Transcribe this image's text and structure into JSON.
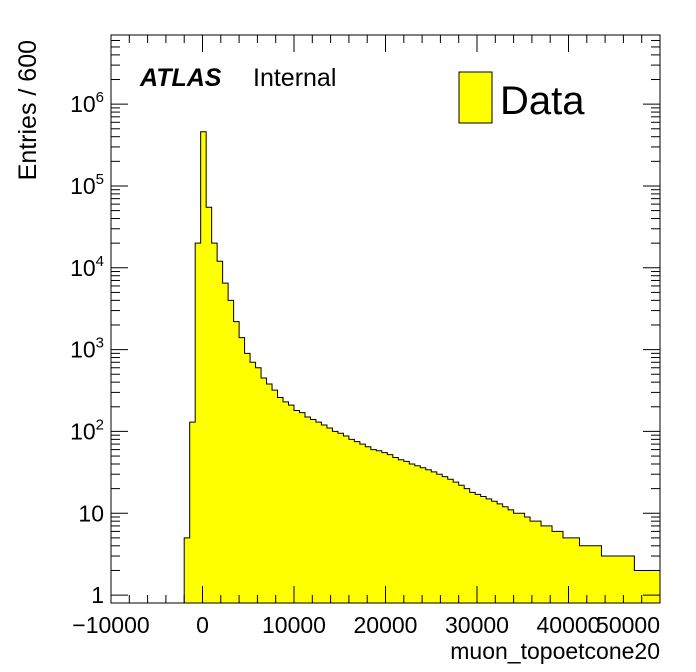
{
  "chart_data": {
    "type": "bar",
    "style": "filled-step-histogram",
    "xlabel": "muon_topoetcone20",
    "ylabel": "Entries / 600",
    "atlas_label": "ATLAS",
    "atlas_status": "Internal",
    "legend": {
      "label": "Data",
      "placement": "top-right"
    },
    "colors": {
      "fill": "#ffff00",
      "line": "#000000"
    },
    "xlim": [
      -10000,
      50000
    ],
    "ylog": true,
    "ylim": [
      0.8,
      7000000
    ],
    "bin_width": 600,
    "x_ticks": [
      {
        "v": -10000,
        "label": "−10000"
      },
      {
        "v": 0,
        "label": "0"
      },
      {
        "v": 10000,
        "label": "10000"
      },
      {
        "v": 20000,
        "label": "20000"
      },
      {
        "v": 30000,
        "label": "30000"
      },
      {
        "v": 40000,
        "label": "40000"
      },
      {
        "v": 50000,
        "label": "50000"
      }
    ],
    "y_ticks": [
      {
        "v": 1,
        "base": "1",
        "exp": ""
      },
      {
        "v": 10,
        "base": "10",
        "exp": ""
      },
      {
        "v": 100,
        "base": "10",
        "exp": "2"
      },
      {
        "v": 1000,
        "base": "10",
        "exp": "3"
      },
      {
        "v": 10000,
        "base": "10",
        "exp": "4"
      },
      {
        "v": 100000,
        "base": "10",
        "exp": "5"
      },
      {
        "v": 1000000,
        "base": "10",
        "exp": "6"
      }
    ],
    "bin_start": -2000,
    "values": [
      5,
      130,
      20000,
      460000,
      55000,
      20000,
      12000,
      6500,
      4000,
      2200,
      1400,
      900,
      700,
      600,
      450,
      380,
      320,
      260,
      230,
      210,
      180,
      170,
      150,
      140,
      130,
      120,
      110,
      100,
      95,
      88,
      80,
      75,
      70,
      65,
      60,
      58,
      55,
      52,
      48,
      45,
      43,
      40,
      38,
      36,
      34,
      32,
      30,
      28,
      26,
      24,
      22,
      20,
      18,
      17,
      16,
      15,
      14,
      13,
      12,
      11,
      10,
      10,
      9,
      8,
      8,
      7,
      7,
      6,
      6,
      5,
      5,
      5,
      4,
      4,
      4,
      4,
      3,
      3,
      3,
      3,
      3,
      3,
      2,
      2,
      2,
      2,
      2
    ]
  }
}
